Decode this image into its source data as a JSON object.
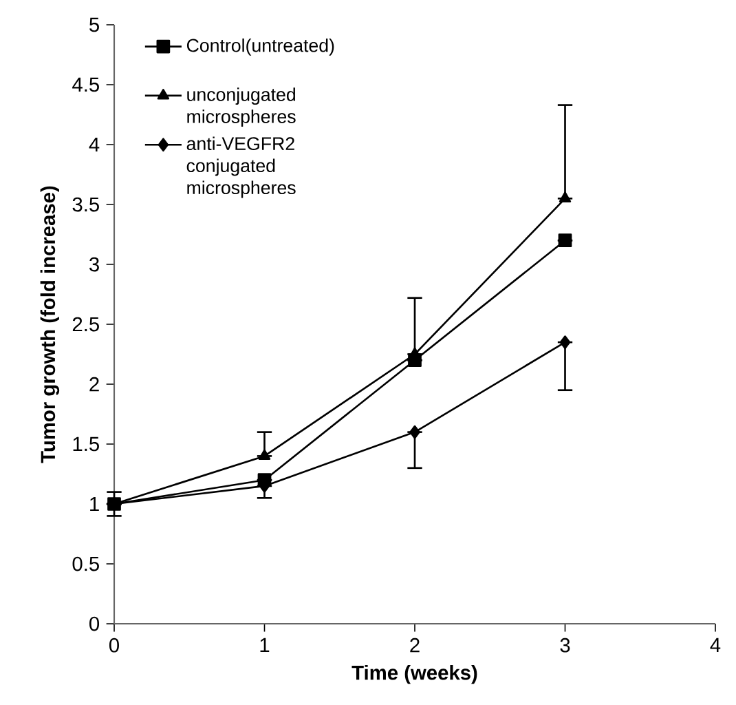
{
  "chart_data": {
    "type": "line",
    "xlabel": "Time (weeks)",
    "ylabel": "Tumor growth (fold increase)",
    "x": [
      0,
      1,
      2,
      3
    ],
    "xlim": [
      0,
      4
    ],
    "xticks": [
      0,
      1,
      2,
      3,
      4
    ],
    "ylim": [
      0,
      5
    ],
    "yticks": [
      0,
      0.5,
      1,
      1.5,
      2,
      2.5,
      3,
      3.5,
      4,
      4.5,
      5
    ],
    "legend": "top left",
    "line_style": "solid",
    "series": [
      {
        "name": "Control(untreated)",
        "color": "#000000",
        "marker": "square",
        "values": [
          1,
          1.2,
          2.2,
          3.2
        ],
        "errors": [
          0.1,
          null,
          null,
          null
        ]
      },
      {
        "name": "unconjugated microspheres",
        "color": "#000000",
        "marker": "triangle",
        "values": [
          1,
          1.4,
          2.25,
          3.55
        ],
        "errors": [
          null,
          [
            1.4,
            1.6
          ],
          [
            2.25,
            2.72
          ],
          [
            3.55,
            4.33
          ]
        ]
      },
      {
        "name": "anti-VEGFR2 conjugated microspheres",
        "color": "#000000",
        "marker": "diamond",
        "values": [
          1,
          1.15,
          1.6,
          2.35
        ],
        "errors": [
          null,
          [
            1.05,
            1.15
          ],
          [
            1.3,
            1.6
          ],
          [
            1.95,
            2.35
          ]
        ]
      }
    ]
  }
}
